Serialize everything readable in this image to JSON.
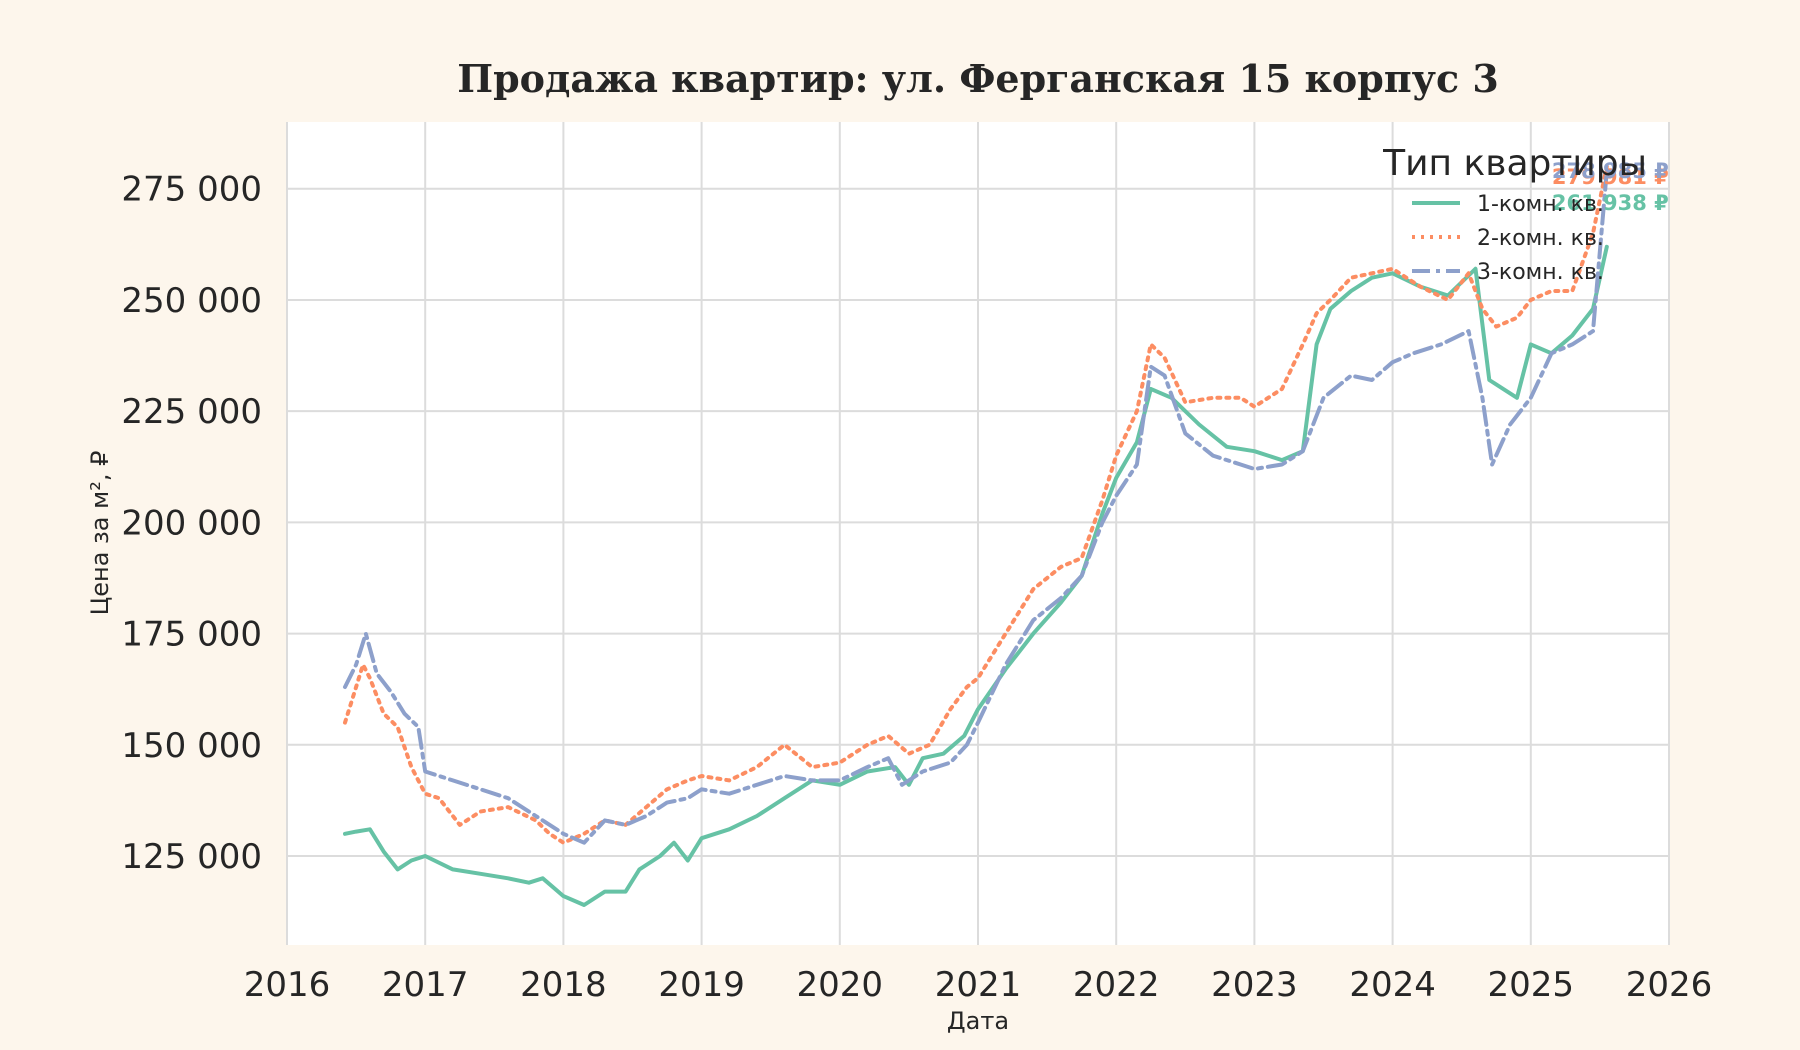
{
  "chart_data": {
    "type": "line",
    "title": "Продажа квартир: ул. Ферганская 15 корпус 3",
    "xlabel": "Дата",
    "ylabel": "Цена за м², ₽",
    "xlim": [
      2016,
      2026
    ],
    "ylim": [
      105000,
      290000
    ],
    "x_ticks": [
      2016,
      2017,
      2018,
      2019,
      2020,
      2021,
      2022,
      2023,
      2024,
      2025,
      2026
    ],
    "y_ticks": [
      125000,
      150000,
      175000,
      200000,
      225000,
      250000,
      275000
    ],
    "y_tick_labels": [
      "125 000",
      "150 000",
      "175 000",
      "200 000",
      "225 000",
      "250 000",
      "275 000"
    ],
    "grid": true,
    "legend": {
      "title": "Тип квартиры",
      "position": "top-right"
    },
    "series": [
      {
        "name": "1-комн. кв.",
        "color": "#66c2a5",
        "style": "solid",
        "end_label": "261 938 ₽",
        "x": [
          2016.42,
          2016.5,
          2016.6,
          2016.7,
          2016.8,
          2016.9,
          2017.0,
          2017.2,
          2017.4,
          2017.6,
          2017.75,
          2017.85,
          2018.0,
          2018.15,
          2018.3,
          2018.45,
          2018.55,
          2018.7,
          2018.8,
          2018.9,
          2019.0,
          2019.2,
          2019.4,
          2019.6,
          2019.8,
          2020.0,
          2020.2,
          2020.4,
          2020.5,
          2020.6,
          2020.75,
          2020.9,
          2021.0,
          2021.2,
          2021.4,
          2021.6,
          2021.75,
          2021.9,
          2022.0,
          2022.15,
          2022.25,
          2022.4,
          2022.6,
          2022.8,
          2023.0,
          2023.2,
          2023.35,
          2023.45,
          2023.55,
          2023.7,
          2023.85,
          2024.0,
          2024.2,
          2024.4,
          2024.6,
          2024.7,
          2024.8,
          2024.9,
          2025.0,
          2025.15,
          2025.3,
          2025.45,
          2025.55
        ],
        "values": [
          130000,
          130500,
          131000,
          126000,
          122000,
          124000,
          125000,
          122000,
          121000,
          120000,
          119000,
          120000,
          116000,
          114000,
          117000,
          117000,
          122000,
          125000,
          128000,
          124000,
          129000,
          131000,
          134000,
          138000,
          142000,
          141000,
          144000,
          145000,
          141000,
          147000,
          148000,
          152000,
          158000,
          167000,
          175000,
          182000,
          188000,
          202000,
          210000,
          218000,
          230000,
          228000,
          222000,
          217000,
          216000,
          214000,
          216000,
          240000,
          248000,
          252000,
          255000,
          256000,
          253000,
          251000,
          257000,
          232000,
          230000,
          228000,
          240000,
          238000,
          242000,
          248000,
          261938
        ]
      },
      {
        "name": "2-комн. кв.",
        "color": "#fc8d62",
        "style": "dotted",
        "end_label": "279 981 ₽",
        "x": [
          2016.42,
          2016.5,
          2016.55,
          2016.6,
          2016.7,
          2016.8,
          2016.9,
          2017.0,
          2017.1,
          2017.25,
          2017.4,
          2017.6,
          2017.8,
          2017.9,
          2018.0,
          2018.15,
          2018.3,
          2018.45,
          2018.6,
          2018.75,
          2018.9,
          2019.0,
          2019.2,
          2019.4,
          2019.6,
          2019.8,
          2020.0,
          2020.2,
          2020.35,
          2020.5,
          2020.65,
          2020.8,
          2020.92,
          2021.0,
          2021.2,
          2021.4,
          2021.6,
          2021.75,
          2021.9,
          2022.0,
          2022.15,
          2022.25,
          2022.35,
          2022.5,
          2022.7,
          2022.9,
          2023.0,
          2023.2,
          2023.35,
          2023.45,
          2023.55,
          2023.7,
          2023.85,
          2024.0,
          2024.2,
          2024.4,
          2024.55,
          2024.65,
          2024.75,
          2024.9,
          2025.0,
          2025.15,
          2025.3,
          2025.45,
          2025.55
        ],
        "values": [
          155000,
          163000,
          168000,
          165000,
          157000,
          154000,
          145000,
          139000,
          138000,
          132000,
          135000,
          136000,
          133000,
          130000,
          128000,
          130000,
          133000,
          132000,
          136000,
          140000,
          142000,
          143000,
          142000,
          145000,
          150000,
          145000,
          146000,
          150000,
          152000,
          148000,
          150000,
          158000,
          163000,
          165000,
          175000,
          185000,
          190000,
          192000,
          205000,
          215000,
          225000,
          240000,
          237000,
          227000,
          228000,
          228000,
          226000,
          230000,
          240000,
          247000,
          250000,
          255000,
          256000,
          257000,
          253000,
          250000,
          256000,
          248000,
          244000,
          246000,
          250000,
          252000,
          252000,
          265000,
          279981
        ]
      },
      {
        "name": "3-комн. кв.",
        "color": "#8da0cb",
        "style": "dashdot",
        "end_label": "278 985 ₽",
        "x": [
          2016.42,
          2016.5,
          2016.57,
          2016.65,
          2016.75,
          2016.85,
          2016.95,
          2017.0,
          2017.2,
          2017.4,
          2017.6,
          2017.8,
          2018.0,
          2018.15,
          2018.3,
          2018.45,
          2018.6,
          2018.75,
          2018.9,
          2019.0,
          2019.2,
          2019.4,
          2019.6,
          2019.8,
          2020.0,
          2020.2,
          2020.35,
          2020.45,
          2020.6,
          2020.8,
          2020.92,
          2021.0,
          2021.2,
          2021.4,
          2021.6,
          2021.75,
          2021.9,
          2022.0,
          2022.15,
          2022.25,
          2022.35,
          2022.5,
          2022.7,
          2022.9,
          2023.0,
          2023.2,
          2023.35,
          2023.5,
          2023.7,
          2023.85,
          2024.0,
          2024.15,
          2024.35,
          2024.55,
          2024.65,
          2024.72,
          2024.85,
          2025.0,
          2025.15,
          2025.3,
          2025.45,
          2025.55
        ],
        "values": [
          163000,
          168000,
          175000,
          166000,
          162000,
          157000,
          154000,
          144000,
          142000,
          140000,
          138000,
          134000,
          130000,
          128000,
          133000,
          132000,
          134000,
          137000,
          138000,
          140000,
          139000,
          141000,
          143000,
          142000,
          142000,
          145000,
          147000,
          141000,
          144000,
          146000,
          150000,
          155000,
          168000,
          178000,
          183000,
          188000,
          200000,
          206000,
          213000,
          235000,
          233000,
          220000,
          215000,
          213000,
          212000,
          213000,
          216000,
          228000,
          233000,
          232000,
          236000,
          238000,
          240000,
          243000,
          228000,
          213000,
          222000,
          228000,
          238000,
          240000,
          243000,
          278985
        ]
      }
    ]
  }
}
